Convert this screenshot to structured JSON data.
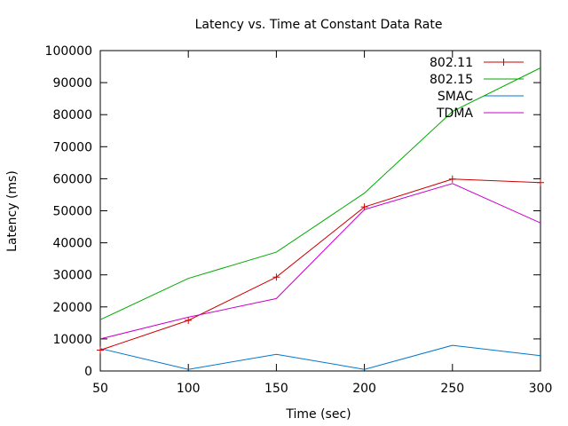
{
  "chart_data": {
    "type": "line",
    "title": "Latency vs. Time at Constant Data Rate",
    "xlabel": "Time (sec)",
    "ylabel": "Latency (ms)",
    "xlim": [
      50,
      300
    ],
    "ylim": [
      0,
      100000
    ],
    "xticks": [
      50,
      100,
      150,
      200,
      250,
      300
    ],
    "yticks": [
      0,
      10000,
      20000,
      30000,
      40000,
      50000,
      60000,
      70000,
      80000,
      90000,
      100000
    ],
    "grid": false,
    "legend_position": "top-right",
    "x": [
      50,
      100,
      150,
      200,
      250,
      300
    ],
    "series": [
      {
        "name": "802.11",
        "color": "#cc0000",
        "marker": "plus",
        "values": [
          6500,
          15800,
          29300,
          51200,
          59900,
          58800
        ]
      },
      {
        "name": "802.15",
        "color": "#00aa00",
        "marker": "none",
        "values": [
          16000,
          28900,
          37100,
          55500,
          81000,
          94600
        ]
      },
      {
        "name": "SMAC",
        "color": "#0077cc",
        "marker": "none",
        "values": [
          7000,
          500,
          5200,
          500,
          8000,
          4800
        ]
      },
      {
        "name": "TDMA",
        "color": "#cc00cc",
        "marker": "none",
        "values": [
          10000,
          16800,
          22600,
          50400,
          58500,
          46200
        ]
      }
    ]
  }
}
